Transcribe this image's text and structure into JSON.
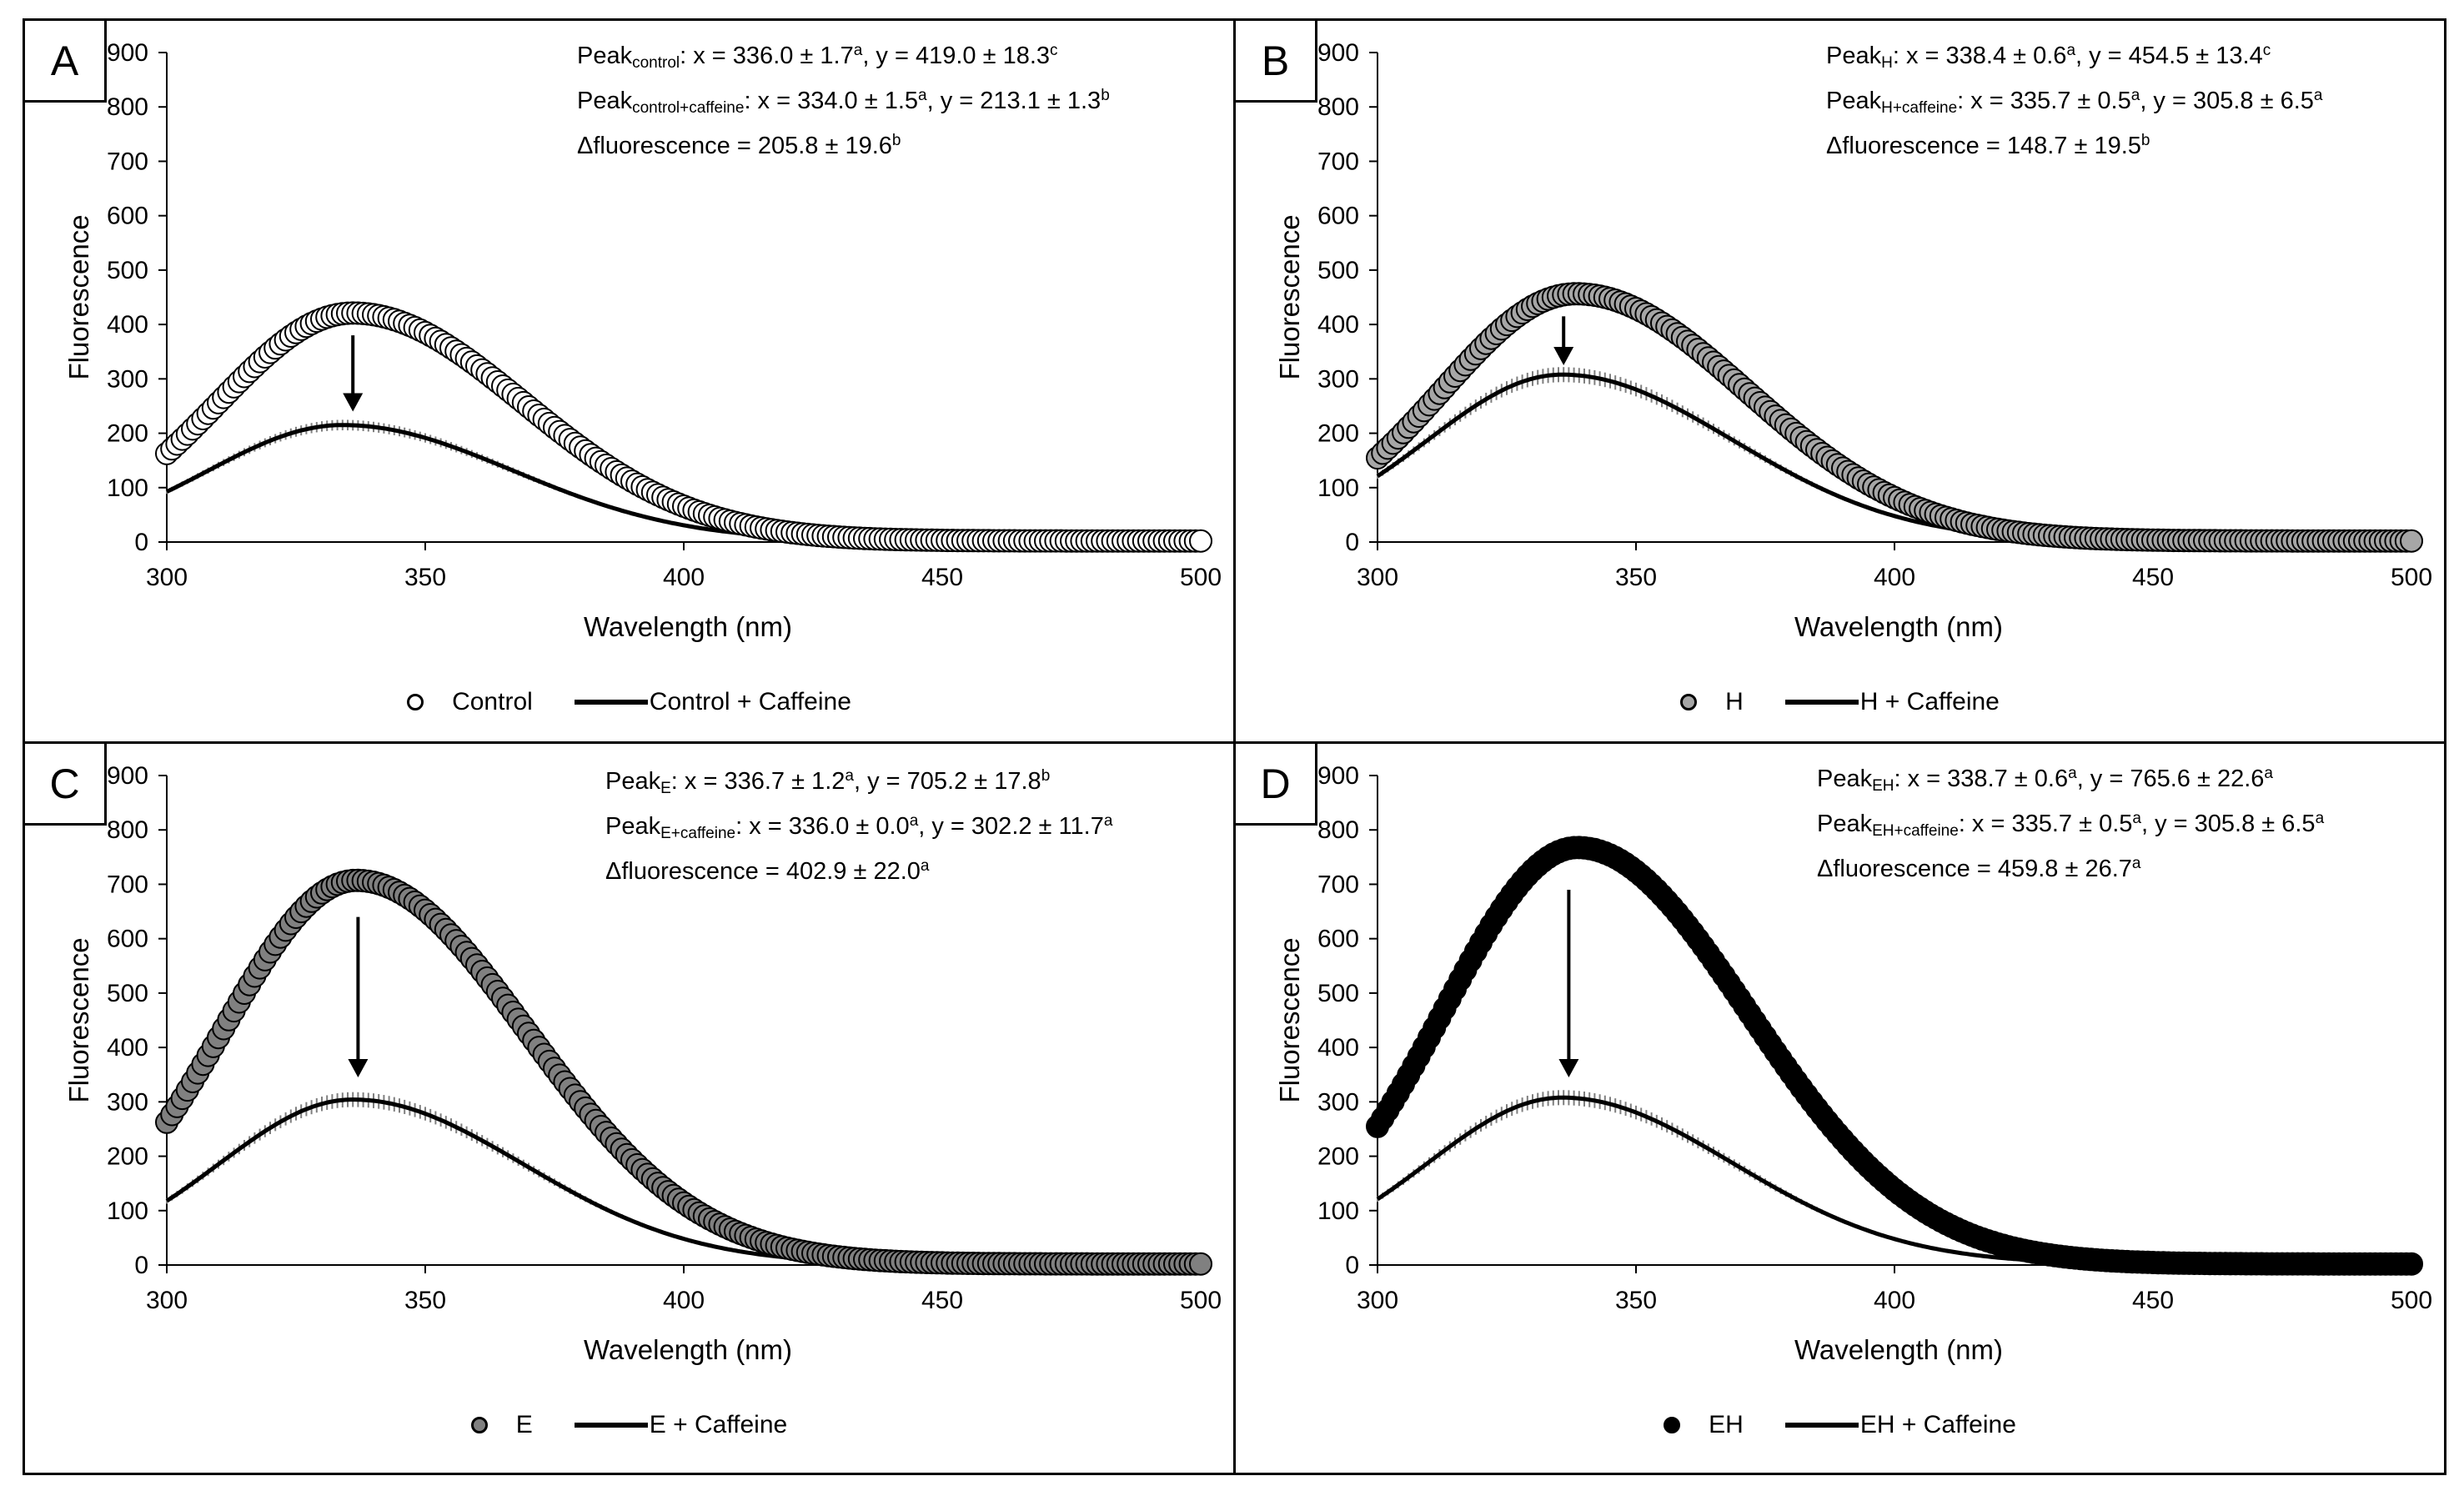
{
  "chart_data": [
    {
      "type": "scatter",
      "panel": "A",
      "xlabel": "Wavelength (nm)",
      "ylabel": "Fluorescence",
      "xlim": [
        300,
        500
      ],
      "ylim": [
        0,
        900
      ],
      "xticks": [
        "300",
        "350",
        "400",
        "450",
        "500"
      ],
      "yticks": [
        "0",
        "100",
        "200",
        "300",
        "400",
        "500",
        "600",
        "700",
        "800",
        "900"
      ],
      "grid": false,
      "legend_position": "bottom-center",
      "marker_color": "#ffffff",
      "line_color": "#000000",
      "series": [
        {
          "name": "Control",
          "style": "markers",
          "peak_x": 336.0,
          "peak_y": 419.0
        },
        {
          "name": "Control + Caffeine",
          "style": "line-with-error-bars",
          "peak_x": 334.0,
          "peak_y": 213.1
        }
      ],
      "annotations": [
        {
          "base": "Peak",
          "sub": "control",
          "text": ": x = 336.0 ± 1.7",
          "sup1": "a",
          "text2": ", y = 419.0 ± 18.3",
          "sup2": "c"
        },
        {
          "base": "Peak",
          "sub": "control+caffeine",
          "text": ": x = 334.0 ± 1.5",
          "sup1": "a",
          "text2": ", y = 213.1 ± 1.3",
          "sup2": "b"
        },
        {
          "base": "",
          "sub": "",
          "text": "Δfluorescence = 205.8 ± 19.6",
          "sup1": "b",
          "text2": "",
          "sup2": ""
        }
      ],
      "arrow": {
        "x": 336,
        "from": 380,
        "to": 240
      }
    },
    {
      "type": "scatter",
      "panel": "B",
      "xlabel": "Wavelength (nm)",
      "ylabel": "Fluorescence",
      "xlim": [
        300,
        500
      ],
      "ylim": [
        0,
        900
      ],
      "xticks": [
        "300",
        "350",
        "400",
        "450",
        "500"
      ],
      "yticks": [
        "0",
        "100",
        "200",
        "300",
        "400",
        "500",
        "600",
        "700",
        "800",
        "900"
      ],
      "grid": false,
      "legend_position": "bottom-center",
      "marker_color": "#a6a6a6",
      "line_color": "#000000",
      "series": [
        {
          "name": "H",
          "style": "markers",
          "peak_x": 338.4,
          "peak_y": 454.5
        },
        {
          "name": "H + Caffeine",
          "style": "line-with-error-bars",
          "peak_x": 335.7,
          "peak_y": 305.8
        }
      ],
      "annotations": [
        {
          "base": "Peak",
          "sub": "H",
          "text": ": x = 338.4 ± 0.6",
          "sup1": "a",
          "text2": ", y = 454.5 ± 13.4",
          "sup2": "c"
        },
        {
          "base": "Peak",
          "sub": "H+caffeine",
          "text": ": x = 335.7 ± 0.5",
          "sup1": "a",
          "text2": ", y = 305.8 ± 6.5",
          "sup2": "a"
        },
        {
          "base": "",
          "sub": "",
          "text": "Δfluorescence = 148.7 ± 19.5",
          "sup1": "b",
          "text2": "",
          "sup2": ""
        }
      ],
      "arrow": {
        "x": 336,
        "from": 415,
        "to": 325
      }
    },
    {
      "type": "scatter",
      "panel": "C",
      "xlabel": "Wavelength (nm)",
      "ylabel": "Fluorescence",
      "xlim": [
        300,
        500
      ],
      "ylim": [
        0,
        900
      ],
      "xticks": [
        "300",
        "350",
        "400",
        "450",
        "500"
      ],
      "yticks": [
        "0",
        "100",
        "200",
        "300",
        "400",
        "500",
        "600",
        "700",
        "800",
        "900"
      ],
      "grid": false,
      "legend_position": "bottom-center",
      "marker_color": "#808080",
      "line_color": "#000000",
      "series": [
        {
          "name": "E",
          "style": "markers",
          "peak_x": 336.7,
          "peak_y": 705.2
        },
        {
          "name": "E + Caffeine",
          "style": "line-with-error-bars",
          "peak_x": 336.0,
          "peak_y": 302.2
        }
      ],
      "annotations": [
        {
          "base": "Peak",
          "sub": "E",
          "text": ": x = 336.7 ± 1.2",
          "sup1": "a",
          "text2": ", y = 705.2 ± 17.8",
          "sup2": "b"
        },
        {
          "base": "Peak",
          "sub": "E+caffeine",
          "text": ": x = 336.0 ± 0.0",
          "sup1": "a",
          "text2": ", y = 302.2 ± 11.7",
          "sup2": "a"
        },
        {
          "base": "",
          "sub": "",
          "text": "Δfluorescence = 402.9 ± 22.0",
          "sup1": "a",
          "text2": "",
          "sup2": ""
        }
      ],
      "arrow": {
        "x": 337,
        "from": 640,
        "to": 345
      }
    },
    {
      "type": "scatter",
      "panel": "D",
      "xlabel": "Wavelength (nm)",
      "ylabel": "Fluorescence",
      "xlim": [
        300,
        500
      ],
      "ylim": [
        0,
        900
      ],
      "xticks": [
        "300",
        "350",
        "400",
        "450",
        "500"
      ],
      "yticks": [
        "0",
        "100",
        "200",
        "300",
        "400",
        "500",
        "600",
        "700",
        "800",
        "900"
      ],
      "grid": false,
      "legend_position": "bottom-center",
      "marker_color": "#000000",
      "line_color": "#000000",
      "series": [
        {
          "name": "EH",
          "style": "markers",
          "peak_x": 338.7,
          "peak_y": 765.6
        },
        {
          "name": "EH + Caffeine",
          "style": "line-with-error-bars",
          "peak_x": 335.7,
          "peak_y": 305.8
        }
      ],
      "annotations": [
        {
          "base": "Peak",
          "sub": "EH",
          "text": ": x = 338.7 ± 0.6",
          "sup1": "a",
          "text2": ", y = 765.6 ± 22.6",
          "sup2": "a"
        },
        {
          "base": "Peak",
          "sub": "EH+caffeine",
          "text": ": x = 335.7 ± 0.5",
          "sup1": "a",
          "text2": ", y = 305.8 ± 6.5",
          "sup2": "a"
        },
        {
          "base": "",
          "sub": "",
          "text": "Δfluorescence = 459.8 ± 26.7",
          "sup1": "a",
          "text2": "",
          "sup2": ""
        }
      ],
      "arrow": {
        "x": 337,
        "from": 690,
        "to": 345
      }
    }
  ]
}
